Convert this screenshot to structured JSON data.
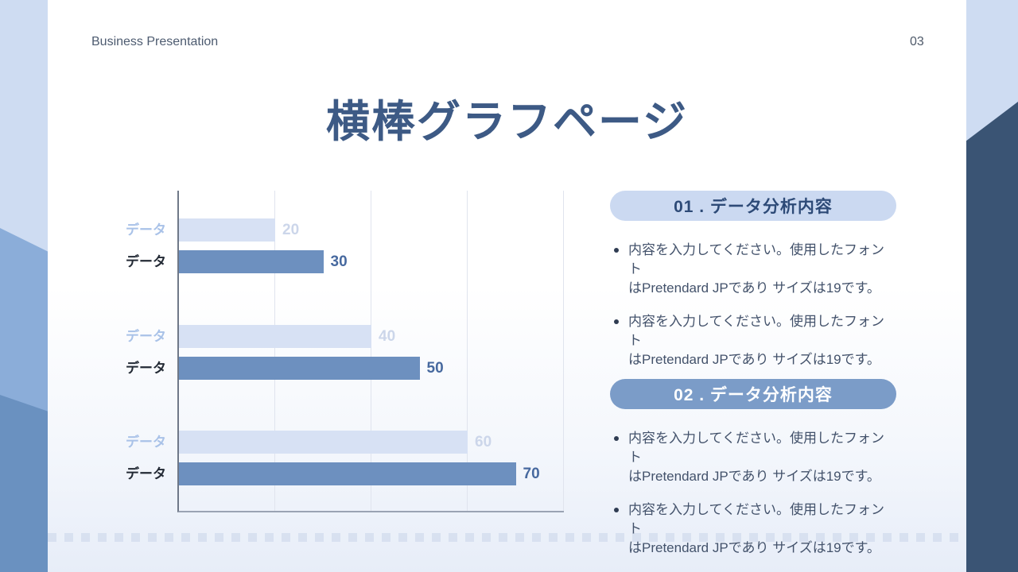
{
  "slide": {
    "brand": "Business Presentation",
    "page_number": "03",
    "title": "横棒グラフページ"
  },
  "chart_data": {
    "type": "bar",
    "orientation": "horizontal",
    "title": "",
    "xlabel": "",
    "ylabel": "",
    "xlim": [
      0,
      80
    ],
    "gridline_values": [
      20,
      40,
      60,
      80
    ],
    "grid": true,
    "legend": false,
    "bars": [
      {
        "label": "データ",
        "value": 20,
        "series": "light",
        "group": 0
      },
      {
        "label": "データ",
        "value": 30,
        "series": "dark",
        "group": 0
      },
      {
        "label": "データ",
        "value": 40,
        "series": "light",
        "group": 1
      },
      {
        "label": "データ",
        "value": 50,
        "series": "dark",
        "group": 1
      },
      {
        "label": "データ",
        "value": 60,
        "series": "light",
        "group": 2
      },
      {
        "label": "データ",
        "value": 70,
        "series": "dark",
        "group": 2
      }
    ],
    "colors": {
      "light_bar": "#d7e1f4",
      "dark_bar": "#6d90bf",
      "light_label": "#a9c2e8",
      "dark_label": "#232a35",
      "light_value": "#ccd6ea",
      "dark_value": "#47699f"
    }
  },
  "sections": [
    {
      "label": "01 . データ分析内容",
      "variant": "light",
      "bullets": [
        {
          "lines": [
            "内容を入力してください。使用したフォント",
            "はPretendard JPであり サイズは19です。"
          ]
        },
        {
          "lines": [
            "内容を入力してください。使用したフォント",
            "はPretendard JPであり サイズは19です。"
          ]
        }
      ]
    },
    {
      "label": "02 . データ分析内容",
      "variant": "dark",
      "bullets": [
        {
          "lines": [
            "内容を入力してください。使用したフォント",
            "はPretendard JPであり サイズは19です。"
          ]
        },
        {
          "lines": [
            "内容を入力してください。使用したフォント",
            "はPretendard JPであり サイズは19です。"
          ]
        }
      ]
    }
  ],
  "theme": {
    "bg_light_blue": "#cedcf2",
    "accent_mid_blue": "#8badd9",
    "accent_steel_blue": "#6a91c0",
    "accent_dark_navy": "#3a5474",
    "title_color": "#3d5a85",
    "pill_light_bg": "#cbd9f1",
    "pill_light_text": "#2d4a77",
    "pill_dark_bg": "#7b9cc8",
    "pill_dark_text": "#ffffff",
    "body_text": "#43526b"
  }
}
